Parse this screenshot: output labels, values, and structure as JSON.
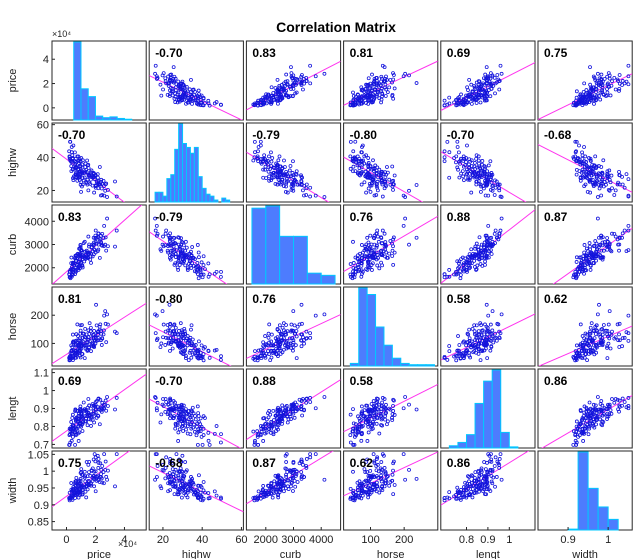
{
  "chart_data": {
    "type": "scatter",
    "title": "Correlation Matrix",
    "variables": [
      "price",
      "highw",
      "curb",
      "horse",
      "lengt",
      "width"
    ],
    "xlabels": [
      "price",
      "highw",
      "curb_",
      "horse",
      "lengt",
      "width"
    ],
    "ylabels": [
      "price",
      "highw",
      "curb",
      "horse",
      "lengt",
      "width"
    ],
    "x_exponent_label": "×10⁴",
    "y_exponent_label": "×10⁴",
    "ranges": [
      [
        -10000,
        55000
      ],
      [
        13,
        61
      ],
      [
        1300,
        4700
      ],
      [
        20,
        300
      ],
      [
        0.68,
        1.12
      ],
      [
        0.825,
        1.06
      ]
    ],
    "xticks": [
      [
        0,
        20000,
        40000
      ],
      [
        20,
        40,
        60
      ],
      [
        2000,
        3000,
        4000
      ],
      [
        100,
        200
      ],
      [
        0.8,
        0.9,
        1
      ],
      [
        0.9,
        1
      ]
    ],
    "xtick_labels": [
      [
        "0",
        "2",
        "4"
      ],
      [
        "20",
        "40",
        "60"
      ],
      [
        "2000",
        "3000",
        "4000"
      ],
      [
        "100",
        "200"
      ],
      [
        "0.8",
        "0.9",
        "1"
      ],
      [
        "0.9",
        "1"
      ]
    ],
    "yticks": [
      [
        0,
        20000,
        40000
      ],
      [
        20,
        40,
        60
      ],
      [
        2000,
        3000,
        4000
      ],
      [
        100,
        200
      ],
      [
        0.7,
        0.8,
        0.9,
        1,
        1.1
      ],
      [
        0.85,
        0.9,
        0.95,
        1,
        1.05
      ]
    ],
    "ytick_labels": [
      [
        "0",
        "2",
        "4"
      ],
      [
        "20",
        "40",
        "60"
      ],
      [
        "2000",
        "3000",
        "4000"
      ],
      [
        "100",
        "200"
      ],
      [
        "0.7",
        "0.8",
        "0.9",
        "1",
        "1.1"
      ],
      [
        "0.85",
        "0.9",
        "0.95",
        "1",
        "1.05"
      ]
    ],
    "correlations": [
      [
        1.0,
        -0.7,
        0.83,
        0.81,
        0.69,
        0.75
      ],
      [
        -0.7,
        1.0,
        -0.79,
        -0.8,
        -0.7,
        -0.68
      ],
      [
        0.83,
        -0.79,
        1.0,
        0.76,
        0.88,
        0.87
      ],
      [
        0.81,
        -0.8,
        0.76,
        1.0,
        0.58,
        0.62
      ],
      [
        0.69,
        -0.7,
        0.88,
        0.58,
        1.0,
        0.86
      ],
      [
        0.75,
        -0.68,
        0.87,
        0.62,
        0.86,
        1.0
      ]
    ],
    "correlation_labels": [
      [
        "",
        "-0.70",
        "0.83",
        "0.81",
        "0.69",
        "0.75"
      ],
      [
        "-0.70",
        "",
        "-0.79",
        "-0.80",
        "-0.70",
        "-0.68"
      ],
      [
        "0.83",
        "-0.79",
        "",
        "0.76",
        "0.88",
        "0.87"
      ],
      [
        "0.81",
        "-0.80",
        "0.76",
        "",
        "0.58",
        "0.62"
      ],
      [
        "0.69",
        "-0.70",
        "0.88",
        "0.58",
        "",
        "0.86"
      ],
      [
        "0.75",
        "-0.68",
        "0.87",
        "0.62",
        "0.86",
        ""
      ]
    ],
    "histograms": [
      {
        "edges": [
          5000,
          10000,
          15000,
          20000,
          25000,
          30000,
          35000,
          40000,
          45000
        ],
        "counts": [
          100,
          40,
          30,
          5,
          3,
          4,
          2,
          1
        ]
      },
      {
        "edges": [
          16,
          18,
          20,
          22,
          24,
          26,
          28,
          30,
          32,
          34,
          36,
          38,
          40,
          42,
          44,
          46,
          48,
          50,
          52,
          54
        ],
        "counts": [
          5,
          5,
          3,
          12,
          14,
          27,
          40,
          30,
          28,
          25,
          28,
          13,
          7,
          4,
          3,
          1,
          0,
          2,
          1
        ]
      },
      {
        "edges": [
          1500,
          2000,
          2500,
          3000,
          3500,
          4000,
          4500
        ],
        "counts": [
          35,
          36,
          22,
          22,
          5,
          4
        ]
      },
      {
        "edges": [
          40,
          65,
          90,
          115,
          140,
          165,
          190,
          215,
          240,
          265,
          290
        ],
        "counts": [
          2,
          60,
          55,
          30,
          16,
          6,
          2,
          1,
          1,
          1
        ]
      },
      {
        "edges": [
          0.72,
          0.76,
          0.8,
          0.84,
          0.88,
          0.92,
          0.96,
          1.0,
          1.04
        ],
        "counts": [
          2,
          5,
          12,
          40,
          60,
          70,
          14,
          1
        ]
      },
      {
        "edges": [
          0.9,
          0.925,
          0.95,
          0.975,
          1.0,
          1.025
        ],
        "counts": [
          1,
          88,
          47,
          26,
          12
        ]
      }
    ]
  },
  "colors": {
    "bar_fill": "#4d7cfe",
    "bar_edge": "#00c8ff",
    "marker": "#1414dc",
    "fit_line": "#ff33ee",
    "frame": "#262626"
  }
}
